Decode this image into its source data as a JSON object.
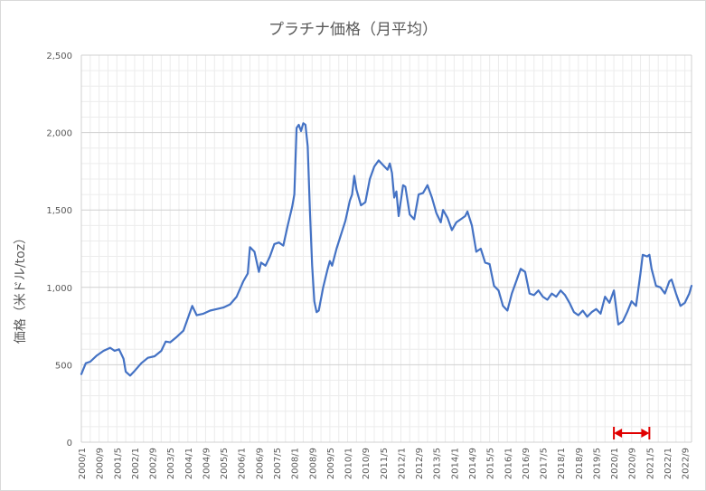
{
  "chart_data": {
    "type": "line",
    "title": "プラチナ価格（月平均）",
    "xlabel": "",
    "ylabel": "価格（米ドル/toz）",
    "ylim": [
      0,
      2500
    ],
    "yticks": [
      0,
      500,
      1000,
      1500,
      2000,
      2500
    ],
    "ytick_labels": [
      "0",
      "500",
      "1,000",
      "1,500",
      "2,000",
      "2,500"
    ],
    "xtick_labels": [
      "2000/1",
      "2000/9",
      "2001/5",
      "2002/1",
      "2002/9",
      "2003/5",
      "2004/1",
      "2004/9",
      "2005/5",
      "2006/1",
      "2006/9",
      "2007/5",
      "2008/1",
      "2008/9",
      "2009/5",
      "2010/1",
      "2010/9",
      "2011/5",
      "2012/1",
      "2012/9",
      "2013/5",
      "2014/1",
      "2014/9",
      "2015/5",
      "2016/1",
      "2016/9",
      "2017/5",
      "2018/1",
      "2018/9",
      "2019/5",
      "2020/1",
      "2020/9",
      "2021/5",
      "2022/1",
      "2022/9"
    ],
    "grid": true,
    "line_color": "#4472c4",
    "annotation": {
      "type": "double-arrow",
      "from": "2020/1",
      "to": "2021/5",
      "color": "#e00000"
    },
    "series": [
      {
        "name": "",
        "points": [
          [
            "2000/1",
            440
          ],
          [
            "2000/3",
            510
          ],
          [
            "2000/5",
            520
          ],
          [
            "2000/8",
            560
          ],
          [
            "2000/11",
            590
          ],
          [
            "2001/2",
            610
          ],
          [
            "2001/4",
            590
          ],
          [
            "2001/6",
            600
          ],
          [
            "2001/8",
            540
          ],
          [
            "2001/9",
            455
          ],
          [
            "2001/11",
            430
          ],
          [
            "2002/1",
            460
          ],
          [
            "2002/4",
            510
          ],
          [
            "2002/7",
            545
          ],
          [
            "2002/10",
            555
          ],
          [
            "2003/1",
            590
          ],
          [
            "2003/3",
            650
          ],
          [
            "2003/5",
            645
          ],
          [
            "2003/8",
            680
          ],
          [
            "2003/11",
            720
          ],
          [
            "2004/1",
            800
          ],
          [
            "2004/3",
            880
          ],
          [
            "2004/5",
            820
          ],
          [
            "2004/8",
            830
          ],
          [
            "2004/11",
            850
          ],
          [
            "2005/2",
            860
          ],
          [
            "2005/5",
            870
          ],
          [
            "2005/8",
            890
          ],
          [
            "2005/11",
            940
          ],
          [
            "2006/2",
            1040
          ],
          [
            "2006/4",
            1090
          ],
          [
            "2006/5",
            1260
          ],
          [
            "2006/7",
            1230
          ],
          [
            "2006/9",
            1100
          ],
          [
            "2006/10",
            1160
          ],
          [
            "2006/12",
            1140
          ],
          [
            "2007/2",
            1200
          ],
          [
            "2007/4",
            1280
          ],
          [
            "2007/6",
            1290
          ],
          [
            "2007/8",
            1270
          ],
          [
            "2007/10",
            1400
          ],
          [
            "2007/12",
            1520
          ],
          [
            "2008/1",
            1600
          ],
          [
            "2008/2",
            2030
          ],
          [
            "2008/3",
            2050
          ],
          [
            "2008/4",
            2010
          ],
          [
            "2008/5",
            2060
          ],
          [
            "2008/6",
            2050
          ],
          [
            "2008/7",
            1910
          ],
          [
            "2008/8",
            1500
          ],
          [
            "2008/9",
            1140
          ],
          [
            "2008/10",
            910
          ],
          [
            "2008/11",
            840
          ],
          [
            "2008/12",
            850
          ],
          [
            "2009/2",
            1000
          ],
          [
            "2009/4",
            1120
          ],
          [
            "2009/5",
            1170
          ],
          [
            "2009/6",
            1140
          ],
          [
            "2009/8",
            1250
          ],
          [
            "2009/10",
            1340
          ],
          [
            "2009/12",
            1430
          ],
          [
            "2010/2",
            1560
          ],
          [
            "2010/3",
            1600
          ],
          [
            "2010/4",
            1720
          ],
          [
            "2010/5",
            1630
          ],
          [
            "2010/7",
            1530
          ],
          [
            "2010/9",
            1550
          ],
          [
            "2010/11",
            1700
          ],
          [
            "2011/1",
            1780
          ],
          [
            "2011/3",
            1820
          ],
          [
            "2011/5",
            1790
          ],
          [
            "2011/7",
            1760
          ],
          [
            "2011/8",
            1800
          ],
          [
            "2011/9",
            1740
          ],
          [
            "2011/10",
            1580
          ],
          [
            "2011/11",
            1620
          ],
          [
            "2011/12",
            1460
          ],
          [
            "2012/2",
            1660
          ],
          [
            "2012/3",
            1650
          ],
          [
            "2012/5",
            1470
          ],
          [
            "2012/7",
            1440
          ],
          [
            "2012/9",
            1600
          ],
          [
            "2012/11",
            1610
          ],
          [
            "2013/1",
            1660
          ],
          [
            "2013/3",
            1580
          ],
          [
            "2013/5",
            1480
          ],
          [
            "2013/7",
            1420
          ],
          [
            "2013/8",
            1500
          ],
          [
            "2013/10",
            1450
          ],
          [
            "2013/12",
            1370
          ],
          [
            "2014/2",
            1420
          ],
          [
            "2014/4",
            1440
          ],
          [
            "2014/6",
            1460
          ],
          [
            "2014/7",
            1490
          ],
          [
            "2014/9",
            1400
          ],
          [
            "2014/11",
            1230
          ],
          [
            "2015/1",
            1250
          ],
          [
            "2015/3",
            1160
          ],
          [
            "2015/5",
            1150
          ],
          [
            "2015/7",
            1010
          ],
          [
            "2015/9",
            980
          ],
          [
            "2015/11",
            880
          ],
          [
            "2016/1",
            850
          ],
          [
            "2016/3",
            960
          ],
          [
            "2016/5",
            1040
          ],
          [
            "2016/7",
            1120
          ],
          [
            "2016/9",
            1100
          ],
          [
            "2016/11",
            960
          ],
          [
            "2017/1",
            950
          ],
          [
            "2017/3",
            980
          ],
          [
            "2017/5",
            940
          ],
          [
            "2017/7",
            920
          ],
          [
            "2017/9",
            960
          ],
          [
            "2017/11",
            940
          ],
          [
            "2018/1",
            980
          ],
          [
            "2018/3",
            950
          ],
          [
            "2018/5",
            900
          ],
          [
            "2018/7",
            840
          ],
          [
            "2018/9",
            820
          ],
          [
            "2018/11",
            850
          ],
          [
            "2019/1",
            810
          ],
          [
            "2019/3",
            840
          ],
          [
            "2019/5",
            860
          ],
          [
            "2019/7",
            830
          ],
          [
            "2019/9",
            940
          ],
          [
            "2019/11",
            900
          ],
          [
            "2020/1",
            980
          ],
          [
            "2020/3",
            760
          ],
          [
            "2020/5",
            780
          ],
          [
            "2020/7",
            840
          ],
          [
            "2020/9",
            910
          ],
          [
            "2020/11",
            880
          ],
          [
            "2021/1",
            1090
          ],
          [
            "2021/2",
            1210
          ],
          [
            "2021/4",
            1200
          ],
          [
            "2021/5",
            1210
          ],
          [
            "2021/6",
            1120
          ],
          [
            "2021/8",
            1010
          ],
          [
            "2021/10",
            1000
          ],
          [
            "2021/12",
            960
          ],
          [
            "2022/2",
            1040
          ],
          [
            "2022/3",
            1050
          ],
          [
            "2022/5",
            960
          ],
          [
            "2022/7",
            880
          ],
          [
            "2022/9",
            900
          ],
          [
            "2022/11",
            960
          ],
          [
            "2022/12",
            1010
          ]
        ]
      }
    ]
  }
}
